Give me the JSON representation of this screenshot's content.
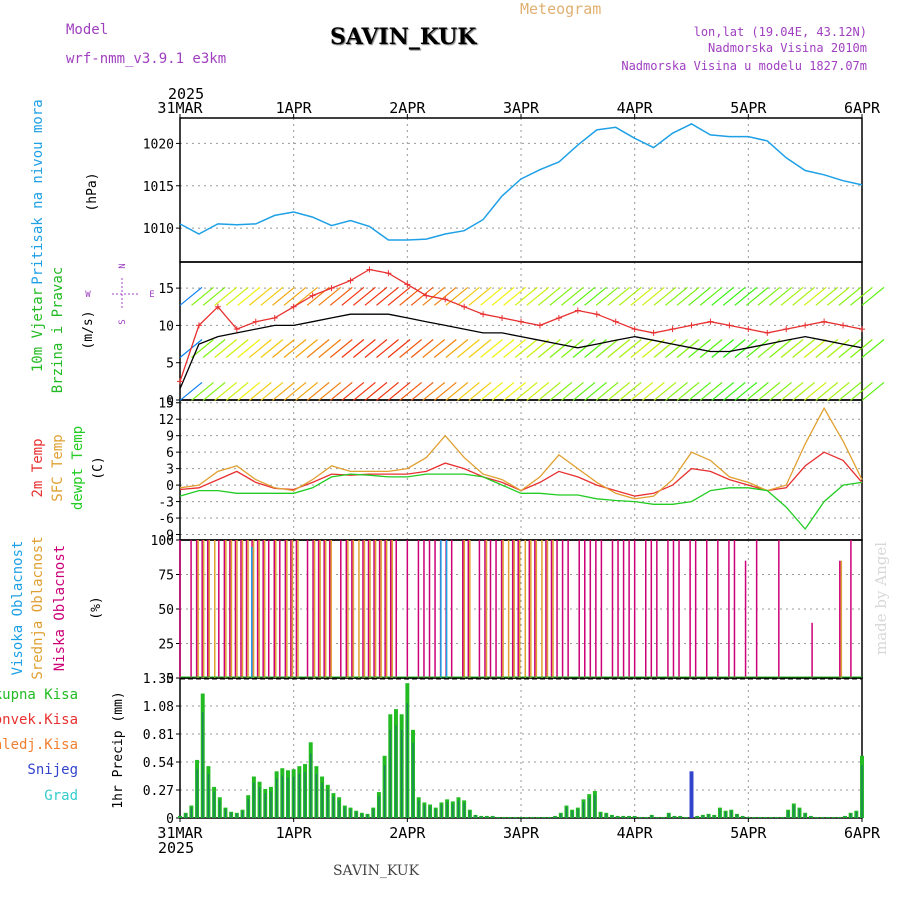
{
  "header": {
    "model_label": "Model",
    "model_name": "wrf-nmm_v3.9.1 e3km",
    "station": "SAVIN_KUK",
    "meteogram": "Meteogram",
    "lonlat": "lon,lat (19.04E, 43.12N)",
    "elevation": "Nadmorska Visina 2010m",
    "model_elevation": "Nadmorska Visina u modelu 1827.07m",
    "year_top": "2025",
    "year_bottom": "2025",
    "footer_station": "SAVIN_KUK",
    "watermark": "made by Angel"
  },
  "colors": {
    "pressure": "#1ea0e6",
    "wind_label": "#22bb22",
    "temp2m": "#e83030",
    "sfc": "#e0a030",
    "dewpt": "#22cc22",
    "high_cloud": "#1ea0e6",
    "mid_cloud": "#e0a030",
    "low_cloud": "#cc0077",
    "total_precip": "#22bb22",
    "conv_precip": "#e83030",
    "frozen_precip": "#f08030",
    "snow": "#3344cc",
    "grad": "#33cccc",
    "purple": "#a040c0"
  },
  "chart_data": [
    {
      "id": "pressure",
      "type": "line",
      "title": "Pritisak na nivou mora",
      "ylabel": "(hPa)",
      "ylim": [
        1006,
        1023
      ],
      "yticks": [
        1010,
        1015,
        1020
      ],
      "x_hours": [
        0,
        4,
        8,
        12,
        16,
        20,
        24,
        28,
        32,
        36,
        40,
        44,
        48,
        52,
        56,
        60,
        64,
        68,
        72,
        76,
        80,
        84,
        88,
        92,
        96,
        100,
        104,
        108,
        112,
        116,
        120,
        124,
        128,
        132,
        136,
        140,
        144
      ],
      "values": [
        1010.5,
        1009.3,
        1010.5,
        1010.4,
        1010.5,
        1011.5,
        1011.9,
        1011.3,
        1010.3,
        1010.9,
        1010.2,
        1008.6,
        1008.6,
        1008.7,
        1009.3,
        1009.7,
        1011.0,
        1013.8,
        1015.8,
        1016.9,
        1017.8,
        1019.8,
        1021.6,
        1021.9,
        1020.6,
        1019.5,
        1021.2,
        1022.3,
        1021.0,
        1020.8,
        1020.8,
        1020.3,
        1018.3,
        1016.8,
        1016.3,
        1015.6,
        1015.1
      ]
    },
    {
      "id": "wind",
      "type": "line",
      "title": "10m Vjetar",
      "subtitle": "Brzina i Pravac",
      "ylabel": "(m/s)",
      "ylim": [
        0,
        18.5
      ],
      "yticks": [
        0,
        5,
        10,
        15
      ],
      "compass": [
        "N",
        "W",
        "E",
        "S"
      ],
      "series": [
        {
          "name": "Brzina",
          "values": [
            1.5,
            7.5,
            8.5,
            9.0,
            9.5,
            10.0,
            10.0,
            10.5,
            11.0,
            11.5,
            11.5,
            11.5,
            11.0,
            10.5,
            10.0,
            9.5,
            9.0,
            9.0,
            8.5,
            8.0,
            7.5,
            7.0,
            7.5,
            8.0,
            8.5,
            8.0,
            7.5,
            7.0,
            6.5,
            6.5,
            7.0,
            7.5,
            8.0,
            8.5,
            8.0,
            7.5,
            7.0
          ]
        },
        {
          "name": "Udar",
          "values": [
            2.5,
            10.0,
            12.5,
            9.5,
            10.5,
            11.0,
            12.5,
            14.0,
            15.0,
            16.0,
            17.5,
            17.0,
            15.5,
            14.0,
            13.5,
            12.5,
            11.5,
            11.0,
            10.5,
            10.0,
            11.0,
            12.0,
            11.5,
            10.5,
            9.5,
            9.0,
            9.5,
            10.0,
            10.5,
            10.0,
            9.5,
            9.0,
            9.5,
            10.0,
            10.5,
            10.0,
            9.5
          ]
        }
      ]
    },
    {
      "id": "temperature",
      "type": "line",
      "title_2m": "2m Temp",
      "title_sfc": "SFC Temp",
      "title_dewpt": "dewpt Temp",
      "ylabel": "(C)",
      "ylim": [
        -10,
        15.5
      ],
      "yticks": [
        -9,
        -6,
        -3,
        0,
        3,
        6,
        9,
        12,
        15
      ],
      "series": [
        {
          "name": "2m Temp",
          "values": [
            -0.8,
            -0.5,
            1.0,
            2.5,
            0.5,
            -0.6,
            -0.8,
            0.5,
            2.0,
            1.8,
            2.0,
            2.0,
            2.0,
            2.5,
            4.0,
            3.0,
            1.5,
            0.5,
            -1.0,
            0.5,
            2.5,
            1.5,
            0.0,
            -1.0,
            -2.0,
            -1.5,
            0.0,
            3.0,
            2.5,
            1.0,
            0.0,
            -1.0,
            -0.5,
            3.5,
            6.0,
            4.5,
            0.5
          ]
        },
        {
          "name": "SFC Temp",
          "values": [
            -0.5,
            0.0,
            2.5,
            3.5,
            1.0,
            -0.5,
            -1.0,
            1.0,
            3.5,
            2.5,
            2.5,
            2.5,
            3.0,
            5.0,
            9.0,
            5.0,
            2.0,
            1.0,
            -1.0,
            1.5,
            5.5,
            3.0,
            0.5,
            -1.5,
            -2.5,
            -2.0,
            1.0,
            6.0,
            4.5,
            1.5,
            0.5,
            -1.0,
            0.0,
            7.5,
            14.0,
            8.0,
            1.0
          ]
        },
        {
          "name": "dewpt Temp",
          "values": [
            -2.0,
            -1.0,
            -1.0,
            -1.5,
            -1.5,
            -1.5,
            -1.5,
            -0.5,
            1.5,
            2.0,
            1.8,
            1.5,
            1.5,
            2.0,
            2.0,
            2.0,
            1.5,
            0.0,
            -1.5,
            -1.5,
            -1.8,
            -1.8,
            -2.5,
            -2.8,
            -3.0,
            -3.5,
            -3.5,
            -3.0,
            -1.0,
            -0.5,
            -0.5,
            -1.0,
            -4.0,
            -8.0,
            -3.0,
            0.0,
            0.5
          ]
        }
      ]
    },
    {
      "id": "cloud",
      "type": "bar",
      "title_high": "Visoka Oblacnost",
      "title_mid": "Srednja Oblacnost",
      "title_low": "Niska Oblacnost",
      "ylabel": "(%)",
      "ylim": [
        0,
        100
      ],
      "yticks": [
        0,
        25,
        50,
        75,
        100
      ],
      "series": [
        {
          "name": "Niska",
          "values": [
            100,
            0,
            100,
            100,
            100,
            100,
            0,
            100,
            100,
            100,
            100,
            100,
            100,
            100,
            100,
            100,
            100,
            100,
            100,
            100,
            100,
            100,
            0,
            100,
            100,
            100,
            100,
            100,
            0,
            100,
            100,
            100,
            0,
            100,
            100,
            100,
            100,
            100,
            100,
            100,
            0,
            100,
            0,
            100,
            100,
            100,
            100,
            100,
            100,
            100,
            0,
            100,
            100,
            0,
            100,
            100,
            100,
            100,
            100,
            0,
            100,
            100,
            0,
            100,
            100,
            0,
            100,
            100,
            100,
            100,
            100,
            0,
            100,
            100,
            100,
            100,
            100,
            0,
            100,
            100,
            100,
            100,
            100,
            0,
            100,
            100,
            100,
            0,
            100,
            100,
            100,
            0,
            100,
            100,
            0,
            100,
            0,
            100,
            0,
            100,
            100,
            0,
            85,
            0,
            100,
            0,
            0,
            0,
            100,
            0,
            0,
            0,
            0,
            0,
            40,
            0,
            0,
            0,
            0,
            85,
            0,
            100,
            0,
            0
          ]
        },
        {
          "name": "Srednja",
          "values": [
            0,
            0,
            0,
            100,
            100,
            100,
            100,
            0,
            100,
            100,
            100,
            100,
            100,
            100,
            100,
            100,
            0,
            100,
            0,
            100,
            100,
            100,
            0,
            0,
            100,
            100,
            100,
            100,
            0,
            0,
            100,
            100,
            100,
            100,
            100,
            100,
            100,
            100,
            100,
            0,
            0,
            0,
            0,
            0,
            0,
            0,
            0,
            0,
            0,
            0,
            0,
            100,
            100,
            0,
            0,
            100,
            0,
            0,
            100,
            100,
            100,
            100,
            100,
            100,
            100,
            100,
            100,
            100,
            0,
            0,
            0,
            0,
            0,
            0,
            0,
            0,
            0,
            0,
            0,
            0,
            0,
            0,
            0,
            0,
            0,
            0,
            0,
            0,
            0,
            0,
            0,
            0,
            0,
            0,
            0,
            0,
            0,
            0,
            0,
            0,
            0,
            0,
            0,
            0,
            0,
            0,
            0,
            0,
            0,
            0,
            0,
            0,
            0,
            0,
            0,
            0,
            0,
            0,
            0,
            85,
            0,
            0,
            0,
            0
          ]
        },
        {
          "name": "Visoka",
          "values": [
            0,
            0,
            0,
            0,
            0,
            0,
            0,
            0,
            0,
            0,
            0,
            0,
            95,
            0,
            0,
            0,
            0,
            0,
            0,
            0,
            0,
            0,
            0,
            0,
            0,
            0,
            0,
            0,
            0,
            0,
            0,
            0,
            0,
            0,
            0,
            0,
            0,
            0,
            0,
            0,
            0,
            0,
            0,
            0,
            0,
            100,
            100,
            0,
            0,
            0,
            0,
            0,
            0,
            0,
            0,
            0,
            0,
            0,
            0,
            0,
            0,
            0,
            0,
            0,
            0,
            0,
            0,
            0,
            0,
            0,
            0,
            0,
            0,
            0,
            0,
            0,
            0,
            0,
            0,
            0,
            0,
            0,
            0,
            0,
            0,
            0,
            0,
            0,
            0,
            0,
            0,
            0,
            0,
            0,
            0,
            0,
            0,
            0,
            0,
            0,
            0,
            0,
            0,
            0,
            0,
            0,
            0,
            0,
            0,
            0,
            0,
            0,
            0,
            0,
            0,
            0,
            0,
            0,
            0,
            0
          ]
        }
      ]
    },
    {
      "id": "precip",
      "type": "bar",
      "title_total": "Ukupna Kisa",
      "title_conv": "Konvek.Kisa",
      "title_frozen": "Zaledj.Kisa",
      "title_snow": "Snijeg",
      "title_grad": "Grad",
      "ylabel": "1hr Precip (mm)",
      "ylim": [
        0,
        1.35
      ],
      "yticks": [
        0,
        0.27,
        0.54,
        0.81,
        1.08,
        1.35
      ],
      "ytick_labels": [
        "0",
        "0.27",
        "0.54",
        "0.81",
        "1.08",
        "1.35"
      ],
      "series": [
        {
          "name": "Ukupna",
          "values": [
            0.02,
            0.05,
            0.12,
            0.56,
            1.2,
            0.5,
            0.3,
            0.2,
            0.1,
            0.06,
            0.05,
            0.08,
            0.22,
            0.4,
            0.35,
            0.28,
            0.3,
            0.45,
            0.48,
            0.46,
            0.47,
            0.5,
            0.52,
            0.73,
            0.5,
            0.4,
            0.32,
            0.24,
            0.2,
            0.12,
            0.1,
            0.07,
            0.05,
            0.04,
            0.1,
            0.25,
            0.6,
            1.0,
            1.05,
            1.0,
            1.3,
            0.85,
            0.2,
            0.15,
            0.13,
            0.1,
            0.15,
            0.18,
            0.16,
            0.2,
            0.17,
            0.08,
            0.03,
            0.02,
            0.02,
            0.02,
            0.01,
            0.01,
            0.01,
            0.01,
            0.01,
            0.01,
            0.01,
            0.01,
            0.01,
            0.01,
            0.02,
            0.05,
            0.12,
            0.08,
            0.1,
            0.18,
            0.23,
            0.26,
            0.06,
            0.05,
            0.03,
            0.02,
            0.02,
            0.02,
            0.02,
            0.01,
            0.01,
            0.03,
            0.01,
            0.01,
            0.05,
            0.02,
            0.02,
            0.01,
            0.02,
            0.02,
            0.03,
            0.04,
            0.03,
            0.1,
            0.07,
            0.08,
            0.04,
            0.02,
            0.01,
            0.01,
            0.01,
            0.01,
            0.01,
            0.01,
            0.01,
            0.08,
            0.14,
            0.1,
            0.05,
            0.02,
            0.01,
            0.01,
            0.01,
            0.01,
            0.01,
            0.02,
            0.05,
            0.07,
            0.6
          ]
        },
        {
          "name": "Snijeg",
          "values": [
            0,
            0,
            0,
            0,
            0,
            0,
            0,
            0,
            0,
            0,
            0,
            0,
            0,
            0,
            0,
            0,
            0,
            0,
            0,
            0,
            0,
            0,
            0,
            0,
            0,
            0,
            0,
            0,
            0,
            0,
            0,
            0,
            0,
            0,
            0,
            0,
            0,
            0,
            0,
            0,
            0,
            0,
            0,
            0,
            0,
            0,
            0,
            0,
            0,
            0,
            0,
            0,
            0,
            0,
            0,
            0,
            0,
            0,
            0,
            0,
            0,
            0,
            0,
            0,
            0,
            0,
            0,
            0,
            0,
            0,
            0,
            0,
            0,
            0,
            0,
            0,
            0,
            0,
            0,
            0,
            0,
            0,
            0,
            0,
            0,
            0,
            0,
            0,
            0,
            0,
            0.45,
            0,
            0,
            0,
            0,
            0,
            0,
            0,
            0,
            0,
            0,
            0,
            0,
            0,
            0,
            0,
            0,
            0,
            0,
            0,
            0,
            0,
            0,
            0,
            0,
            0,
            0,
            0,
            0,
            0,
            0
          ]
        }
      ]
    }
  ],
  "x_axis": {
    "labels": [
      "31MAR",
      "1APR",
      "2APR",
      "3APR",
      "4APR",
      "5APR",
      "6APR"
    ],
    "hours": [
      0,
      24,
      48,
      72,
      96,
      120,
      144
    ]
  }
}
